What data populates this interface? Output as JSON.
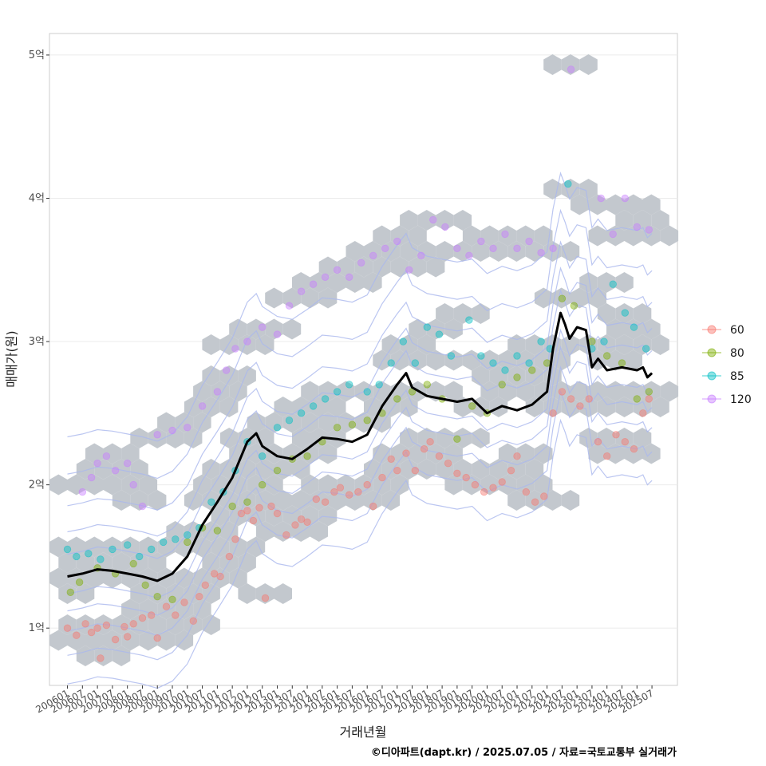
{
  "chart_data": {
    "type": "scatter",
    "title": "",
    "xlabel": "거래년월",
    "ylabel": "매매가(원)",
    "y_ticks": [
      {
        "value": 1,
        "label": "1억"
      },
      {
        "value": 2,
        "label": "2억"
      },
      {
        "value": 3,
        "label": "3억"
      },
      {
        "value": 4,
        "label": "4억"
      },
      {
        "value": 5,
        "label": "5억"
      }
    ],
    "ylim": [
      0.6,
      5.15
    ],
    "xlim": [
      2005.4,
      2026.35
    ],
    "x_tick_labels": [
      "200601",
      "200607",
      "200701",
      "200707",
      "200801",
      "200807",
      "200901",
      "200907",
      "201001",
      "201007",
      "201101",
      "201107",
      "201201",
      "201207",
      "201301",
      "201307",
      "201401",
      "201407",
      "201501",
      "201507",
      "201601",
      "201607",
      "201701",
      "201707",
      "201801",
      "201807",
      "201901",
      "201907",
      "202001",
      "202007",
      "202101",
      "202107",
      "202201",
      "202207",
      "202301",
      "202307",
      "202401",
      "202407",
      "202501",
      "202507"
    ],
    "legend": {
      "position": "right",
      "entries": [
        {
          "label": "60",
          "color": "#F8766D"
        },
        {
          "label": "80",
          "color": "#7CAE00"
        },
        {
          "label": "85",
          "color": "#00BFC4"
        },
        {
          "label": "120",
          "color": "#C77CFF"
        }
      ]
    },
    "trend_line": {
      "name": "moving average",
      "color": "#000000",
      "points": [
        [
          2006.0,
          1.36
        ],
        [
          2006.5,
          1.38
        ],
        [
          2007.0,
          1.41
        ],
        [
          2007.5,
          1.4
        ],
        [
          2008.0,
          1.38
        ],
        [
          2008.5,
          1.36
        ],
        [
          2009.0,
          1.33
        ],
        [
          2009.5,
          1.38
        ],
        [
          2010.0,
          1.5
        ],
        [
          2010.5,
          1.72
        ],
        [
          2011.0,
          1.88
        ],
        [
          2011.5,
          2.05
        ],
        [
          2012.0,
          2.3
        ],
        [
          2012.3,
          2.36
        ],
        [
          2012.5,
          2.27
        ],
        [
          2013.0,
          2.2
        ],
        [
          2013.5,
          2.18
        ],
        [
          2014.0,
          2.25
        ],
        [
          2014.5,
          2.33
        ],
        [
          2015.0,
          2.32
        ],
        [
          2015.5,
          2.3
        ],
        [
          2016.0,
          2.35
        ],
        [
          2016.5,
          2.55
        ],
        [
          2017.0,
          2.7
        ],
        [
          2017.3,
          2.78
        ],
        [
          2017.5,
          2.68
        ],
        [
          2018.0,
          2.62
        ],
        [
          2018.5,
          2.6
        ],
        [
          2019.0,
          2.58
        ],
        [
          2019.5,
          2.6
        ],
        [
          2020.0,
          2.5
        ],
        [
          2020.5,
          2.55
        ],
        [
          2021.0,
          2.52
        ],
        [
          2021.5,
          2.56
        ],
        [
          2022.0,
          2.65
        ],
        [
          2022.2,
          2.95
        ],
        [
          2022.45,
          3.2
        ],
        [
          2022.6,
          3.12
        ],
        [
          2022.75,
          3.02
        ],
        [
          2023.0,
          3.1
        ],
        [
          2023.3,
          3.08
        ],
        [
          2023.5,
          2.82
        ],
        [
          2023.7,
          2.88
        ],
        [
          2024.0,
          2.8
        ],
        [
          2024.5,
          2.82
        ],
        [
          2025.0,
          2.8
        ],
        [
          2025.2,
          2.82
        ],
        [
          2025.35,
          2.75
        ],
        [
          2025.5,
          2.78
        ]
      ]
    },
    "series": [
      {
        "name": "60",
        "color": "#F8766D",
        "points": [
          [
            2006.0,
            1.0
          ],
          [
            2006.3,
            0.95
          ],
          [
            2006.6,
            1.03
          ],
          [
            2006.8,
            0.97
          ],
          [
            2007.0,
            1.0
          ],
          [
            2007.1,
            0.79
          ],
          [
            2007.3,
            1.02
          ],
          [
            2007.6,
            0.92
          ],
          [
            2007.9,
            1.01
          ],
          [
            2008.0,
            0.94
          ],
          [
            2008.2,
            1.03
          ],
          [
            2008.5,
            1.07
          ],
          [
            2008.8,
            1.09
          ],
          [
            2009.0,
            0.93
          ],
          [
            2009.3,
            1.15
          ],
          [
            2009.6,
            1.09
          ],
          [
            2009.9,
            1.18
          ],
          [
            2010.2,
            1.05
          ],
          [
            2010.4,
            1.22
          ],
          [
            2010.6,
            1.3
          ],
          [
            2010.9,
            1.38
          ],
          [
            2011.1,
            1.36
          ],
          [
            2011.4,
            1.5
          ],
          [
            2011.6,
            1.62
          ],
          [
            2011.8,
            1.8
          ],
          [
            2012.0,
            1.82
          ],
          [
            2012.2,
            1.75
          ],
          [
            2012.4,
            1.84
          ],
          [
            2012.6,
            1.21
          ],
          [
            2012.8,
            1.85
          ],
          [
            2013.0,
            1.8
          ],
          [
            2013.3,
            1.65
          ],
          [
            2013.6,
            1.72
          ],
          [
            2013.8,
            1.76
          ],
          [
            2014.0,
            1.74
          ],
          [
            2014.3,
            1.9
          ],
          [
            2014.6,
            1.88
          ],
          [
            2014.9,
            1.95
          ],
          [
            2015.1,
            1.98
          ],
          [
            2015.4,
            1.93
          ],
          [
            2015.7,
            1.95
          ],
          [
            2016.0,
            2.0
          ],
          [
            2016.2,
            1.85
          ],
          [
            2016.5,
            2.05
          ],
          [
            2016.8,
            2.18
          ],
          [
            2017.0,
            2.1
          ],
          [
            2017.3,
            2.22
          ],
          [
            2017.6,
            2.1
          ],
          [
            2017.9,
            2.25
          ],
          [
            2018.1,
            2.3
          ],
          [
            2018.4,
            2.2
          ],
          [
            2018.7,
            2.15
          ],
          [
            2019.0,
            2.08
          ],
          [
            2019.3,
            2.05
          ],
          [
            2019.6,
            2.0
          ],
          [
            2019.9,
            1.95
          ],
          [
            2020.2,
            1.98
          ],
          [
            2020.5,
            2.02
          ],
          [
            2020.8,
            2.1
          ],
          [
            2021.0,
            2.2
          ],
          [
            2021.3,
            1.95
          ],
          [
            2021.6,
            1.88
          ],
          [
            2021.9,
            1.92
          ],
          [
            2022.2,
            2.5
          ],
          [
            2022.5,
            2.65
          ],
          [
            2022.8,
            2.6
          ],
          [
            2023.1,
            2.55
          ],
          [
            2023.4,
            2.6
          ],
          [
            2023.7,
            2.3
          ],
          [
            2024.0,
            2.2
          ],
          [
            2024.3,
            2.35
          ],
          [
            2024.6,
            2.3
          ],
          [
            2024.9,
            2.25
          ],
          [
            2025.2,
            2.5
          ],
          [
            2025.4,
            2.6
          ]
        ]
      },
      {
        "name": "80",
        "color": "#7CAE00",
        "points": [
          [
            2006.1,
            1.25
          ],
          [
            2006.4,
            1.32
          ],
          [
            2007.0,
            1.42
          ],
          [
            2007.6,
            1.38
          ],
          [
            2008.2,
            1.45
          ],
          [
            2008.6,
            1.3
          ],
          [
            2009.0,
            1.22
          ],
          [
            2009.5,
            1.2
          ],
          [
            2010.0,
            1.6
          ],
          [
            2010.5,
            1.7
          ],
          [
            2011.0,
            1.68
          ],
          [
            2011.5,
            1.85
          ],
          [
            2012.0,
            1.88
          ],
          [
            2012.5,
            2.0
          ],
          [
            2013.0,
            2.1
          ],
          [
            2013.5,
            2.18
          ],
          [
            2014.0,
            2.2
          ],
          [
            2014.5,
            2.3
          ],
          [
            2015.0,
            2.4
          ],
          [
            2015.5,
            2.42
          ],
          [
            2016.0,
            2.45
          ],
          [
            2016.5,
            2.5
          ],
          [
            2017.0,
            2.6
          ],
          [
            2017.5,
            2.65
          ],
          [
            2018.0,
            2.7
          ],
          [
            2018.5,
            2.6
          ],
          [
            2019.0,
            2.32
          ],
          [
            2019.5,
            2.55
          ],
          [
            2020.0,
            2.5
          ],
          [
            2020.5,
            2.7
          ],
          [
            2021.0,
            2.75
          ],
          [
            2021.5,
            2.8
          ],
          [
            2022.0,
            2.85
          ],
          [
            2022.5,
            3.3
          ],
          [
            2022.9,
            3.25
          ],
          [
            2023.5,
            3.0
          ],
          [
            2024.0,
            2.9
          ],
          [
            2024.5,
            2.85
          ],
          [
            2025.0,
            2.6
          ],
          [
            2025.4,
            2.65
          ]
        ]
      },
      {
        "name": "85",
        "color": "#00BFC4",
        "points": [
          [
            2006.0,
            1.55
          ],
          [
            2006.3,
            1.5
          ],
          [
            2006.7,
            1.52
          ],
          [
            2007.1,
            1.48
          ],
          [
            2007.5,
            1.55
          ],
          [
            2008.0,
            1.58
          ],
          [
            2008.4,
            1.5
          ],
          [
            2008.8,
            1.55
          ],
          [
            2009.2,
            1.6
          ],
          [
            2009.6,
            1.62
          ],
          [
            2010.0,
            1.65
          ],
          [
            2010.4,
            1.7
          ],
          [
            2010.8,
            1.88
          ],
          [
            2011.2,
            1.95
          ],
          [
            2011.6,
            2.1
          ],
          [
            2012.0,
            2.3
          ],
          [
            2012.5,
            2.2
          ],
          [
            2013.0,
            2.4
          ],
          [
            2013.4,
            2.45
          ],
          [
            2013.8,
            2.5
          ],
          [
            2014.2,
            2.55
          ],
          [
            2014.6,
            2.6
          ],
          [
            2015.0,
            2.65
          ],
          [
            2015.4,
            2.7
          ],
          [
            2016.0,
            2.65
          ],
          [
            2016.4,
            2.7
          ],
          [
            2016.8,
            2.85
          ],
          [
            2017.2,
            3.0
          ],
          [
            2017.6,
            2.85
          ],
          [
            2018.0,
            3.1
          ],
          [
            2018.4,
            3.05
          ],
          [
            2018.8,
            2.9
          ],
          [
            2019.4,
            3.15
          ],
          [
            2019.8,
            2.9
          ],
          [
            2020.2,
            2.85
          ],
          [
            2020.6,
            2.8
          ],
          [
            2021.0,
            2.9
          ],
          [
            2021.4,
            2.85
          ],
          [
            2021.8,
            3.0
          ],
          [
            2022.1,
            2.95
          ],
          [
            2022.7,
            4.1
          ],
          [
            2023.5,
            2.95
          ],
          [
            2023.9,
            3.0
          ],
          [
            2024.2,
            3.4
          ],
          [
            2024.6,
            3.2
          ],
          [
            2024.9,
            3.1
          ],
          [
            2025.3,
            2.95
          ]
        ]
      },
      {
        "name": "120",
        "color": "#C77CFF",
        "points": [
          [
            2006.5,
            1.95
          ],
          [
            2006.8,
            2.05
          ],
          [
            2007.0,
            2.15
          ],
          [
            2007.3,
            2.2
          ],
          [
            2007.6,
            2.1
          ],
          [
            2008.0,
            2.15
          ],
          [
            2008.2,
            2.0
          ],
          [
            2008.5,
            1.85
          ],
          [
            2009.0,
            2.35
          ],
          [
            2009.5,
            2.38
          ],
          [
            2010.0,
            2.4
          ],
          [
            2010.5,
            2.55
          ],
          [
            2011.0,
            2.65
          ],
          [
            2011.3,
            2.8
          ],
          [
            2011.6,
            2.95
          ],
          [
            2012.0,
            3.0
          ],
          [
            2012.5,
            3.1
          ],
          [
            2013.0,
            3.05
          ],
          [
            2013.4,
            3.25
          ],
          [
            2013.8,
            3.35
          ],
          [
            2014.2,
            3.4
          ],
          [
            2014.6,
            3.45
          ],
          [
            2015.0,
            3.5
          ],
          [
            2015.4,
            3.45
          ],
          [
            2015.8,
            3.55
          ],
          [
            2016.2,
            3.6
          ],
          [
            2016.6,
            3.65
          ],
          [
            2017.0,
            3.7
          ],
          [
            2017.4,
            3.5
          ],
          [
            2017.8,
            3.6
          ],
          [
            2018.2,
            3.85
          ],
          [
            2018.6,
            3.8
          ],
          [
            2019.0,
            3.65
          ],
          [
            2019.4,
            3.6
          ],
          [
            2019.8,
            3.7
          ],
          [
            2020.2,
            3.65
          ],
          [
            2020.6,
            3.75
          ],
          [
            2021.0,
            3.65
          ],
          [
            2021.4,
            3.7
          ],
          [
            2021.8,
            3.62
          ],
          [
            2022.2,
            3.65
          ],
          [
            2022.8,
            4.9
          ],
          [
            2023.8,
            4.0
          ],
          [
            2024.2,
            3.75
          ],
          [
            2024.6,
            4.0
          ],
          [
            2025.0,
            3.8
          ],
          [
            2025.4,
            3.78
          ]
        ]
      }
    ]
  },
  "caption": "©디아파트(dapt.kr) / 2025.07.05 / 자료=국토교통부 실거래가"
}
